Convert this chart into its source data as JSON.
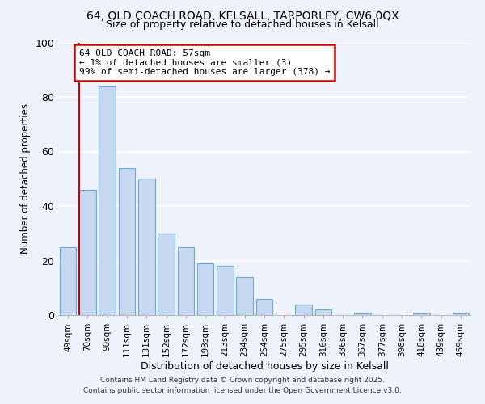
{
  "title1": "64, OLD COACH ROAD, KELSALL, TARPORLEY, CW6 0QX",
  "title2": "Size of property relative to detached houses in Kelsall",
  "xlabel": "Distribution of detached houses by size in Kelsall",
  "ylabel": "Number of detached properties",
  "categories": [
    "49sqm",
    "70sqm",
    "90sqm",
    "111sqm",
    "131sqm",
    "152sqm",
    "172sqm",
    "193sqm",
    "213sqm",
    "234sqm",
    "254sqm",
    "275sqm",
    "295sqm",
    "316sqm",
    "336sqm",
    "357sqm",
    "377sqm",
    "398sqm",
    "418sqm",
    "439sqm",
    "459sqm"
  ],
  "values": [
    25,
    46,
    84,
    54,
    50,
    30,
    25,
    19,
    18,
    14,
    6,
    0,
    4,
    2,
    0,
    1,
    0,
    0,
    1,
    0,
    1
  ],
  "bar_color": "#c5d8f0",
  "bar_edge_color": "#6aaad4",
  "highlight_line_color": "#cc0000",
  "annotation_title": "64 OLD COACH ROAD: 57sqm",
  "annotation_line1": "← 1% of detached houses are smaller (3)",
  "annotation_line2": "99% of semi-detached houses are larger (378) →",
  "annotation_box_color": "#ffffff",
  "annotation_box_edge": "#cc0000",
  "ylim": [
    0,
    100
  ],
  "footnote1": "Contains HM Land Registry data © Crown copyright and database right 2025.",
  "footnote2": "Contains public sector information licensed under the Open Government Licence v3.0.",
  "background_color": "#eef2fa"
}
